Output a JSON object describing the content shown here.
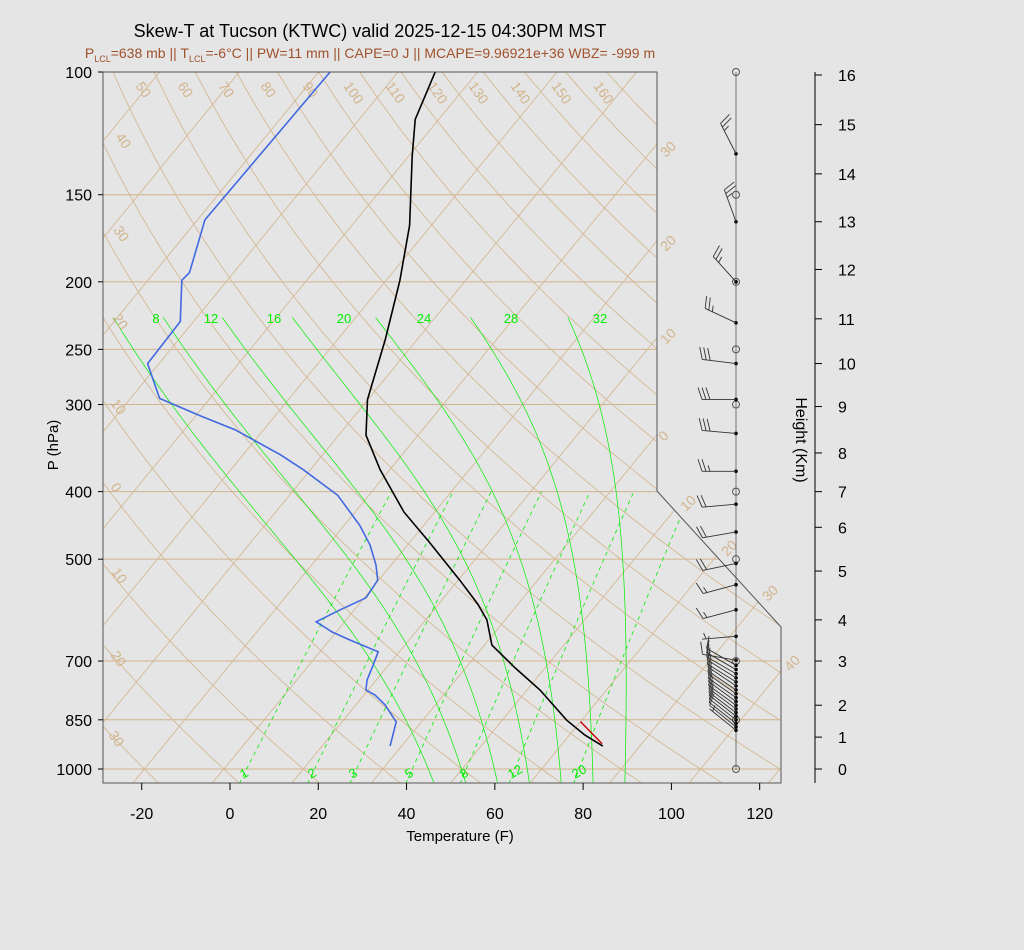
{
  "chart_data": {
    "type": "skew-t",
    "title": "Skew-T at Tucson (KTWC) valid 2025-12-15 04:30PM MST",
    "subtitle": {
      "p_lcl": "=638 mb || ",
      "t_lcl": "=-6°C || PW=11 mm || CAPE=0 J || MCAPE=9.96921e+36 WBZ= -999 m",
      "p_sym": "P",
      "t_sym": "T",
      "sub": "LCL"
    },
    "xlabel": "Temperature (F)",
    "ylabel": "P (hPa)",
    "y2label": "Height (Km)",
    "xticks": [
      -20,
      0,
      20,
      40,
      60,
      80,
      100,
      120
    ],
    "yticks": [
      100,
      150,
      200,
      250,
      300,
      400,
      500,
      700,
      850,
      1000
    ],
    "height_ticks": [
      0,
      1,
      2,
      3,
      4,
      5,
      6,
      7,
      8,
      9,
      10,
      11,
      12,
      13,
      14,
      15,
      16
    ],
    "height_tick_pressures": [
      1000,
      900,
      810,
      700,
      611,
      520,
      450,
      400,
      352,
      302,
      262,
      226,
      192,
      164,
      140,
      119,
      101
    ],
    "ylim": [
      1049,
      100
    ],
    "y_scale": "log",
    "isotherm_labels_c": [
      -30,
      -20,
      -10,
      0,
      10,
      20,
      30,
      40
    ],
    "dry_adiabat_labels_c": [
      -30,
      -20,
      -10,
      0,
      10,
      20,
      30,
      40,
      50,
      60,
      70,
      80,
      90,
      100,
      110,
      120,
      130,
      140,
      150,
      160
    ],
    "moist_adiabat_labels_c": [
      8,
      12,
      16,
      20,
      24,
      28,
      32
    ],
    "mixing_ratio_labels_gkg": [
      1,
      2,
      3,
      5,
      8,
      12,
      20
    ],
    "temperature": {
      "color": "#000000",
      "p": [
        927,
        894,
        851,
        770,
        716,
        664,
        611,
        580,
        536,
        473,
        428,
        372,
        332,
        295,
        272,
        242,
        199,
        166,
        132,
        117,
        100
      ],
      "t_f": [
        77.6,
        71.5,
        64.6,
        52.9,
        43.2,
        33.7,
        27.9,
        22.9,
        14.4,
        0.5,
        -10.9,
        -24.2,
        -33.8,
        -40.1,
        -43.0,
        -47.2,
        -54.9,
        -62.9,
        -75.2,
        -81.3,
        -85.6
      ]
    },
    "dewpoint": {
      "color": "#4169e1",
      "p": [
        927,
        894,
        856,
        809,
        783,
        770,
        745,
        709,
        679,
        653,
        636,
        615,
        591,
        568,
        536,
        510,
        477,
        447,
        405,
        372,
        354,
        326,
        311,
        294,
        262,
        228,
        199,
        194,
        163,
        100
      ],
      "t_f": [
        29.4,
        28.0,
        26.3,
        20.6,
        16.5,
        13.5,
        11.9,
        10.5,
        9.2,
        0.6,
        -4.9,
        -10.4,
        -7.2,
        -3.6,
        -4.2,
        -7.4,
        -12.5,
        -18.5,
        -29.0,
        -41.6,
        -49.6,
        -64.5,
        -75.2,
        -87.4,
        -96.6,
        -97.0,
        -104.3,
        -104.0,
        -110.3,
        -109.4
      ]
    },
    "parcel": {
      "color": "#cc0000",
      "p": [
        920,
        855
      ],
      "t_f": [
        77.0,
        68.0
      ]
    },
    "winds": [
      [
        131,
        333,
        25
      ],
      [
        164,
        340,
        25
      ],
      [
        200,
        318,
        25
      ],
      [
        229,
        295,
        25
      ],
      [
        262,
        277,
        30
      ],
      [
        295,
        270,
        30
      ],
      [
        330,
        275,
        30
      ],
      [
        374,
        270,
        25
      ],
      [
        417,
        265,
        20
      ],
      [
        457,
        260,
        20
      ],
      [
        507,
        258,
        20
      ],
      [
        544,
        255,
        15
      ],
      [
        591,
        255,
        15
      ],
      [
        645,
        265,
        5
      ],
      [
        698,
        280,
        10
      ],
      [
        710,
        300,
        10
      ],
      [
        720,
        300,
        10
      ],
      [
        730,
        300,
        10
      ],
      [
        740,
        302,
        10
      ],
      [
        750,
        302,
        10
      ],
      [
        760,
        304,
        10
      ],
      [
        770,
        304,
        10
      ],
      [
        780,
        305,
        10
      ],
      [
        790,
        305,
        10
      ],
      [
        800,
        306,
        10
      ],
      [
        810,
        306,
        10
      ],
      [
        820,
        307,
        10
      ],
      [
        830,
        307,
        10
      ],
      [
        840,
        308,
        10
      ],
      [
        850,
        308,
        10
      ],
      [
        860,
        308,
        10
      ],
      [
        870,
        309,
        10
      ],
      [
        880,
        309,
        5
      ]
    ],
    "colors": {
      "isopleths": "#d2b48c",
      "moist": "#00ee00",
      "frame": "#555555"
    }
  }
}
